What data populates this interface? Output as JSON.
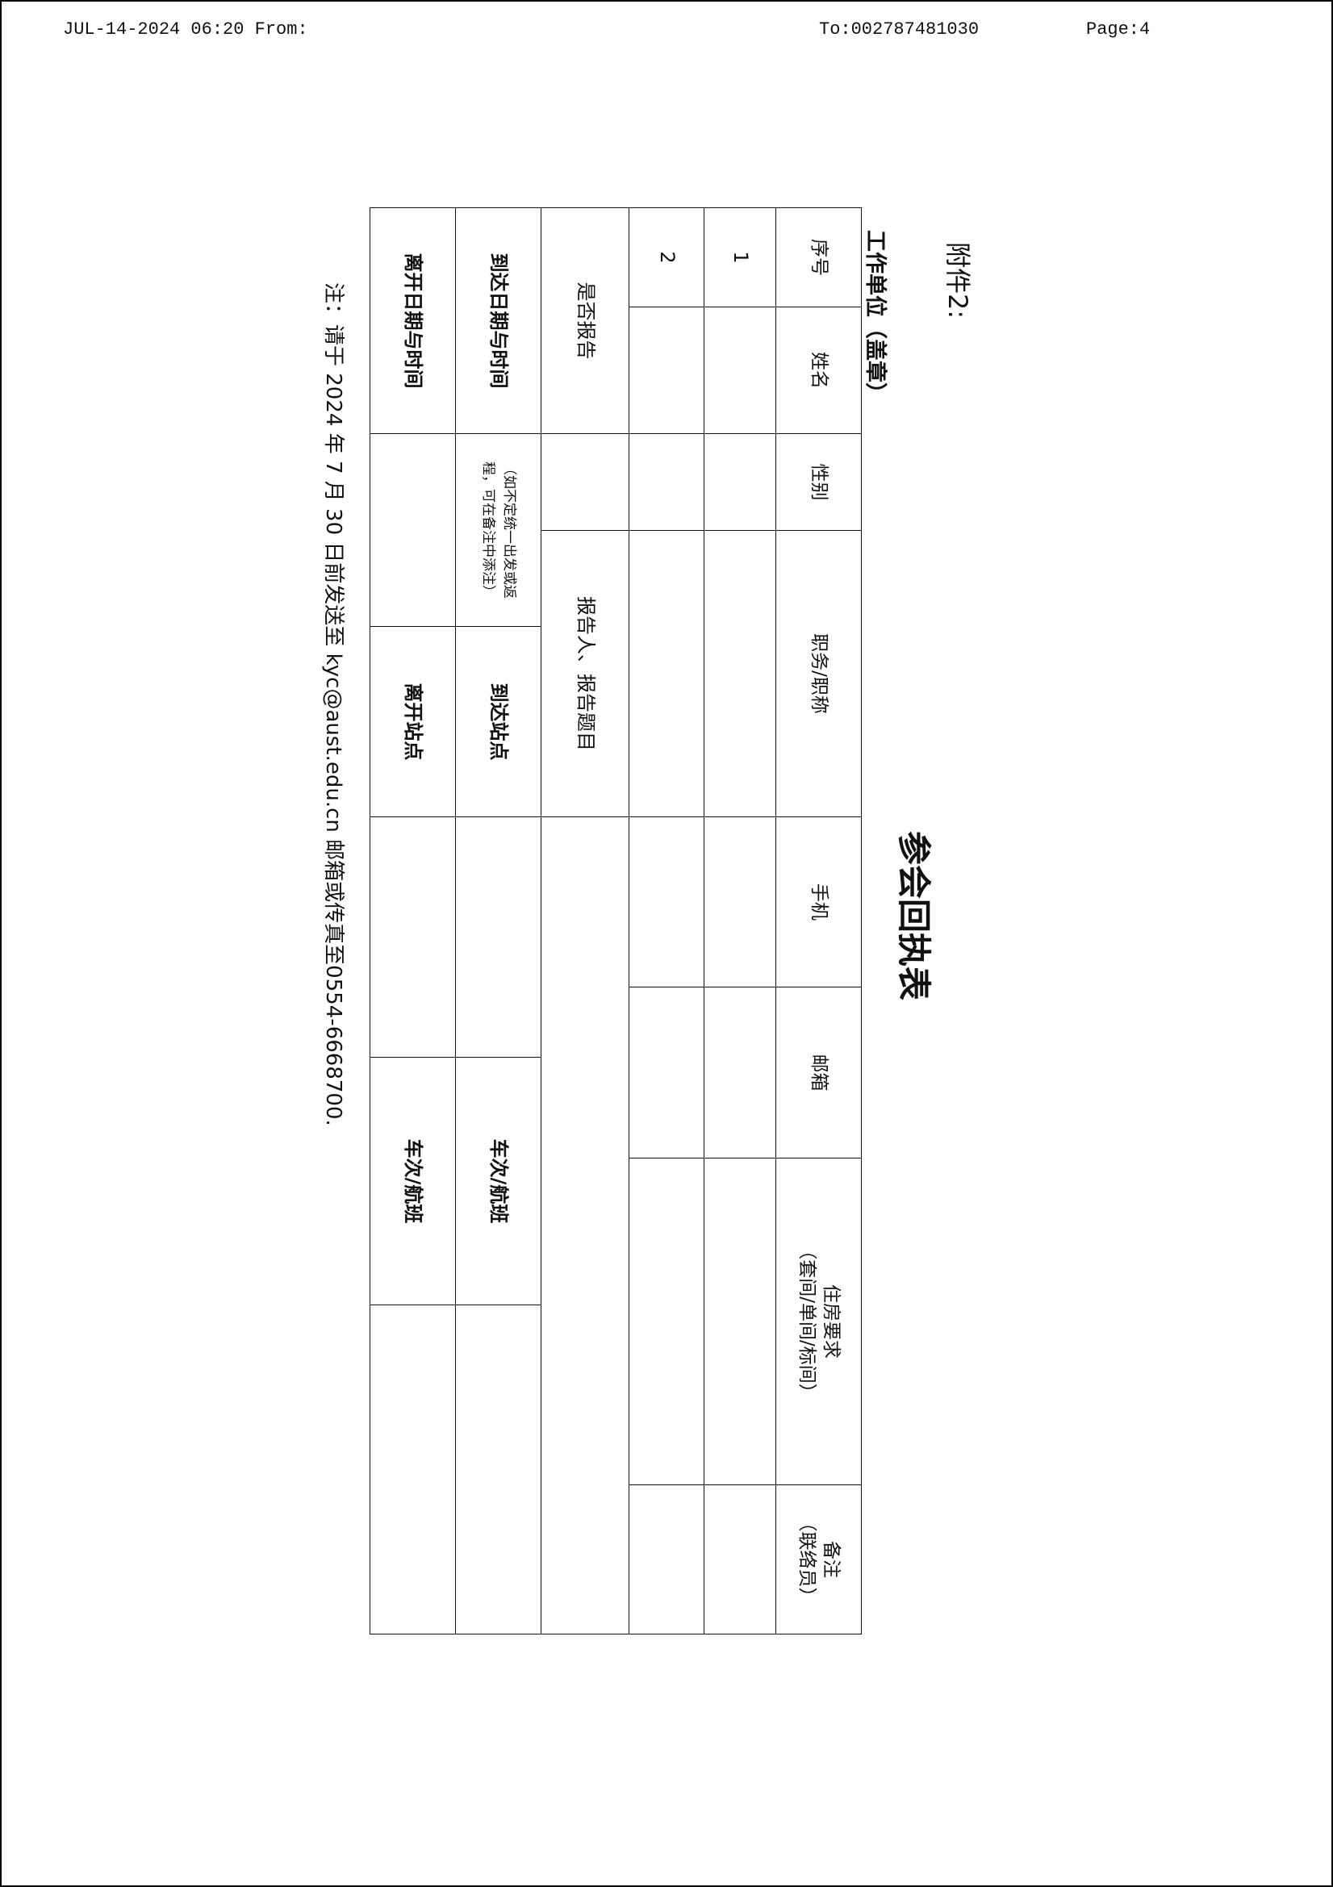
{
  "fax_header": {
    "datetime_from": "JUL-14-2024 06:20 From:",
    "to": "To:002787481030",
    "page": "Page:4"
  },
  "document": {
    "attachment_label": "附件2:",
    "title": "参会回执表",
    "work_unit_label": "工作单位（盖章）",
    "table": {
      "headers": [
        "序号",
        "姓名",
        "性别",
        "职务/职称",
        "手机",
        "邮箱",
        "住房要求\n（套间/单间/标间）",
        "备注\n（联络员）"
      ],
      "rows": [
        {
          "no": "1"
        },
        {
          "no": "2"
        }
      ],
      "report_row": {
        "label": "是否报告",
        "speaker_label": "报告人、报告题目"
      },
      "arrival_row": {
        "label": "到达日期与时间",
        "note": "（如不定统一出发或返\n程，可在备注中添注）",
        "station_label": "到达站点",
        "train_flight_label": "车次/航班"
      },
      "departure_row": {
        "label": "离开日期与时间",
        "station_label": "离开站点",
        "train_flight_label": "车次/航班"
      }
    },
    "footnote": "注：请于 2024 年 7 月 30 日前发送至 kyc@aust.edu.cn 邮箱或传真至0554-6668700."
  }
}
